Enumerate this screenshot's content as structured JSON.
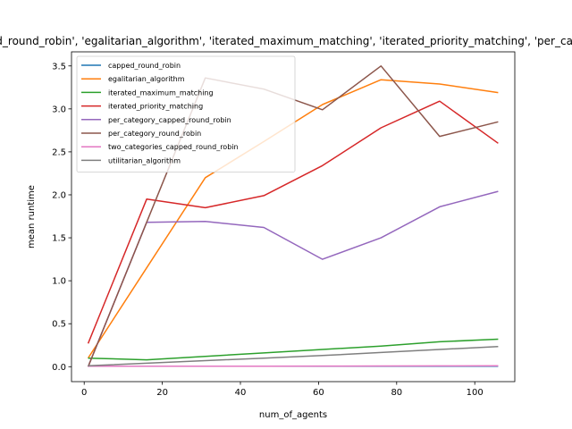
{
  "chart_data": {
    "type": "line",
    "title": "Runtime of different algorithms. ['capped_round_robin', 'egalitarian_algorithm', 'iterated_maximum_matching', 'iterated_priority_matching', 'per_category_round_robin', 'utilitarian_algorithm']",
    "xlabel": "num_of_agents",
    "ylabel": "mean runtime",
    "xlim": [
      -3.25,
      110.25
    ],
    "ylim": [
      -0.174,
      3.664
    ],
    "xticks": [
      0,
      20,
      40,
      60,
      80,
      100
    ],
    "yticks": [
      0.0,
      0.5,
      1.0,
      1.5,
      2.0,
      2.5,
      3.0,
      3.5
    ],
    "xtick_labels": [
      "0",
      "20",
      "40",
      "60",
      "80",
      "100"
    ],
    "ytick_labels": [
      "0.0",
      "0.5",
      "1.0",
      "1.5",
      "2.0",
      "2.5",
      "3.0",
      "3.5"
    ],
    "legend_position": "top-left",
    "grid": false,
    "x": [
      1,
      16,
      31,
      46,
      61,
      76,
      91,
      106
    ],
    "series": [
      {
        "name": "capped_round_robin",
        "color": "#1f77b4",
        "values": [
          0.005,
          0.005,
          0.005,
          0.005,
          0.005,
          0.005,
          0.005,
          0.005
        ]
      },
      {
        "name": "egalitarian_algorithm",
        "color": "#ff7f0e",
        "values": [
          0.1,
          1.15,
          2.2,
          2.62,
          3.05,
          3.34,
          3.29,
          3.19
        ]
      },
      {
        "name": "iterated_maximum_matching",
        "color": "#2ca02c",
        "values": [
          0.1,
          0.08,
          0.12,
          0.16,
          0.2,
          0.24,
          0.29,
          0.32
        ]
      },
      {
        "name": "iterated_priority_matching",
        "color": "#d62728",
        "values": [
          0.27,
          1.95,
          1.85,
          1.99,
          2.34,
          2.78,
          3.09,
          2.6
        ]
      },
      {
        "name": "per_category_capped_round_robin",
        "color": "#9467bd",
        "values": [
          0.0,
          1.68,
          1.69,
          1.62,
          1.25,
          1.5,
          1.86,
          2.04
        ]
      },
      {
        "name": "per_category_round_robin",
        "color": "#8c564b",
        "values": [
          0.0,
          1.68,
          3.36,
          3.23,
          2.99,
          3.5,
          2.68,
          2.85
        ]
      },
      {
        "name": "two_categories_capped_round_robin",
        "color": "#e377c2",
        "values": [
          0.005,
          0.005,
          0.005,
          0.006,
          0.007,
          0.008,
          0.009,
          0.01
        ]
      },
      {
        "name": "utilitarian_algorithm",
        "color": "#7f7f7f",
        "values": [
          0.01,
          0.04,
          0.07,
          0.1,
          0.13,
          0.165,
          0.2,
          0.235
        ]
      }
    ]
  }
}
